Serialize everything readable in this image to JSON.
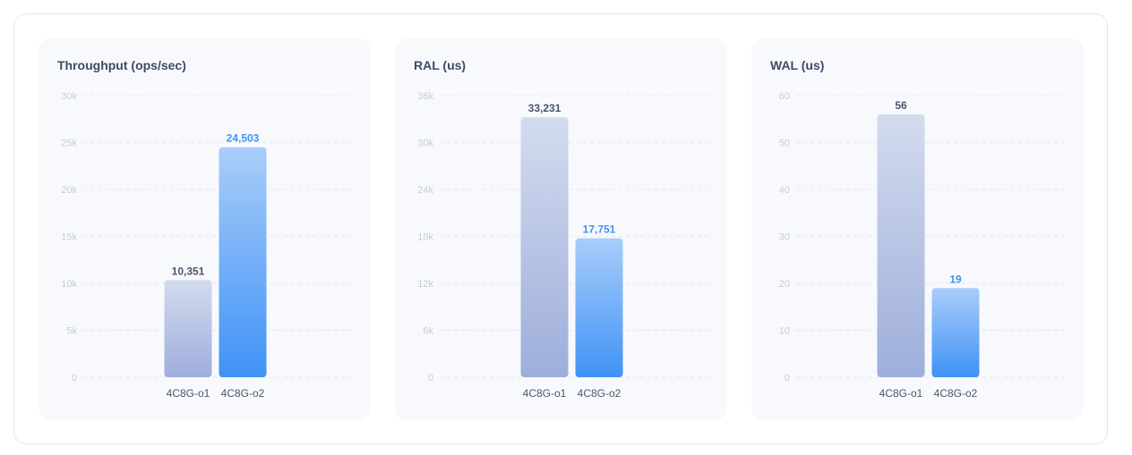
{
  "colors": {
    "series1_top": "#d3dbee",
    "series1_bottom": "#9eaedb",
    "series2_top": "#a9cdfa",
    "series2_bottom": "#3f92f5",
    "label1": "#4b556e",
    "label2": "#3f92f5",
    "grid": "#e3e7ef"
  },
  "chart_data": [
    {
      "type": "bar",
      "title": "Throughput (ops/sec)",
      "categories": [
        "4C8G-o1",
        "4C8G-o2"
      ],
      "values": [
        10351,
        24503
      ],
      "value_labels": [
        "10,351",
        "24,503"
      ],
      "ticks": [
        0,
        5000,
        10000,
        15000,
        20000,
        25000,
        30000
      ],
      "tick_labels": [
        "0",
        "5k",
        "10k",
        "15k",
        "20k",
        "25k",
        "30k"
      ],
      "ylim": [
        0,
        30000
      ],
      "grid": true
    },
    {
      "type": "bar",
      "title": "RAL (us)",
      "categories": [
        "4C8G-o1",
        "4C8G-o2"
      ],
      "values": [
        33231,
        17751
      ],
      "value_labels": [
        "33,231",
        "17,751"
      ],
      "ticks": [
        0,
        6000,
        12000,
        18000,
        24000,
        30000,
        36000
      ],
      "tick_labels": [
        "0",
        "6k",
        "12k",
        "18k",
        "24k",
        "30k",
        "36k"
      ],
      "ylim": [
        0,
        36000
      ],
      "grid": true
    },
    {
      "type": "bar",
      "title": "WAL (us)",
      "categories": [
        "4C8G-o1",
        "4C8G-o2"
      ],
      "values": [
        56,
        19
      ],
      "value_labels": [
        "56",
        "19"
      ],
      "ticks": [
        0,
        10,
        20,
        30,
        40,
        50,
        60
      ],
      "tick_labels": [
        "0",
        "10",
        "20",
        "30",
        "40",
        "50",
        "60"
      ],
      "ylim": [
        0,
        60
      ],
      "grid": true
    }
  ]
}
